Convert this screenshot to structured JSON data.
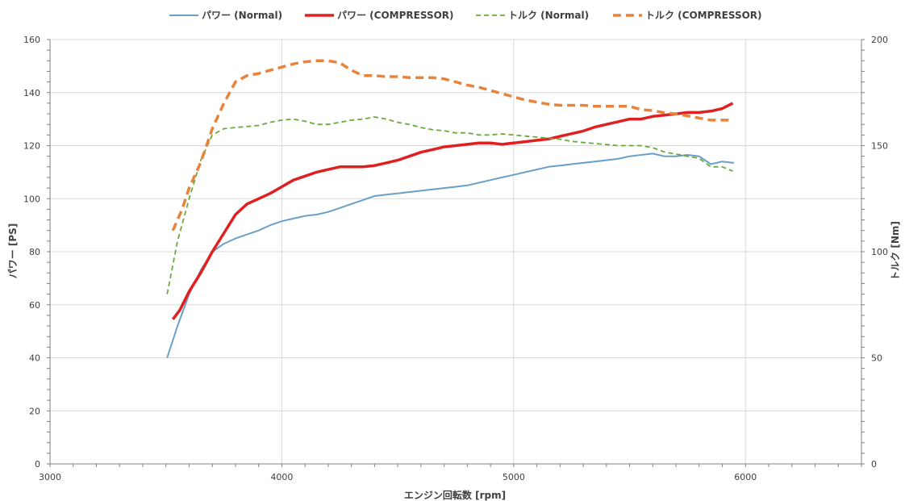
{
  "chart_data": {
    "type": "line",
    "xlabel": "エンジン回転数 [rpm]",
    "ylabel_left": "パワー [PS]",
    "ylabel_right": "トルク [Nm]",
    "xlim": [
      3000,
      6500
    ],
    "ylim_left": [
      0,
      160
    ],
    "ylim_right": [
      0,
      200
    ],
    "x_ticks": [
      3000,
      4000,
      5000,
      6000
    ],
    "y_ticks_left": [
      0,
      20,
      40,
      60,
      80,
      100,
      120,
      140,
      160
    ],
    "y_ticks_right": [
      0,
      50,
      100,
      150,
      200
    ],
    "grid": true,
    "legend_position": "top",
    "series": [
      {
        "name": "パワー (Normal)",
        "axis": "left",
        "color": "#6a9fc8",
        "style": "solid",
        "x": [
          3505,
          3550,
          3600,
          3650,
          3700,
          3750,
          3800,
          3850,
          3900,
          3950,
          4000,
          4050,
          4100,
          4150,
          4200,
          4250,
          4300,
          4350,
          4400,
          4450,
          4500,
          4550,
          4600,
          4650,
          4700,
          4750,
          4800,
          4850,
          4900,
          4950,
          5000,
          5050,
          5100,
          5150,
          5200,
          5250,
          5300,
          5350,
          5400,
          5450,
          5500,
          5550,
          5600,
          5650,
          5700,
          5750,
          5800,
          5850,
          5900,
          5950
        ],
        "y": [
          40,
          52,
          64,
          73,
          80,
          83,
          85,
          86.5,
          88,
          90,
          91.5,
          92.5,
          93.5,
          94,
          95,
          96.5,
          98,
          99.5,
          101,
          101.5,
          102,
          102.5,
          103,
          103.5,
          104,
          104.5,
          105,
          106,
          107,
          108,
          109,
          110,
          111,
          112,
          112.5,
          113,
          113.5,
          114,
          114.5,
          115,
          116,
          116.5,
          117,
          116,
          116,
          116.5,
          116,
          113,
          114,
          113.5
        ]
      },
      {
        "name": "パワー (COMPRESSOR)",
        "axis": "left",
        "color": "#e02020",
        "style": "solid-thick",
        "x": [
          3530,
          3560,
          3600,
          3650,
          3700,
          3750,
          3800,
          3850,
          3900,
          3950,
          4000,
          4050,
          4100,
          4150,
          4200,
          4250,
          4300,
          4350,
          4400,
          4450,
          4500,
          4550,
          4600,
          4650,
          4700,
          4750,
          4800,
          4850,
          4900,
          4950,
          5000,
          5050,
          5100,
          5150,
          5200,
          5250,
          5300,
          5350,
          5400,
          5450,
          5500,
          5550,
          5600,
          5650,
          5700,
          5750,
          5800,
          5850,
          5900,
          5945
        ],
        "y": [
          54.5,
          58,
          65,
          72,
          80,
          87,
          94,
          98,
          100,
          102,
          104.5,
          107,
          108.5,
          110,
          111,
          112,
          112,
          112,
          112.5,
          113.5,
          114.5,
          116,
          117.5,
          118.5,
          119.5,
          120,
          120.5,
          121,
          121,
          120.5,
          121,
          121.5,
          122,
          122.5,
          123.5,
          124.5,
          125.5,
          127,
          128,
          129,
          130,
          130,
          131,
          131.5,
          132,
          132.5,
          132.5,
          133,
          134,
          136
        ]
      },
      {
        "name": "トルク (Normal)",
        "axis": "right",
        "color": "#6aaa3c",
        "style": "dashed",
        "x": [
          3505,
          3550,
          3600,
          3650,
          3700,
          3750,
          3800,
          3850,
          3900,
          3950,
          4000,
          4050,
          4100,
          4150,
          4200,
          4250,
          4300,
          4350,
          4400,
          4450,
          4500,
          4550,
          4600,
          4650,
          4700,
          4750,
          4800,
          4850,
          4900,
          4950,
          5000,
          5050,
          5100,
          5150,
          5200,
          5250,
          5300,
          5350,
          5400,
          5450,
          5500,
          5550,
          5600,
          5650,
          5700,
          5750,
          5800,
          5850,
          5900,
          5945
        ],
        "y": [
          80,
          105,
          125,
          143,
          155,
          158,
          158.5,
          159,
          159.5,
          161,
          162,
          162.5,
          161.5,
          160,
          160,
          161,
          162,
          162.5,
          163.5,
          162.5,
          161,
          160,
          158.5,
          157.5,
          157,
          156,
          156,
          155,
          155,
          155.5,
          155,
          154.5,
          154,
          153.5,
          153,
          152,
          151.5,
          151,
          150.5,
          150,
          150,
          150,
          149,
          147,
          146,
          145,
          144,
          140,
          140,
          138
        ]
      },
      {
        "name": "トルク (COMPRESSOR)",
        "axis": "right",
        "color": "#e8833a",
        "style": "dashed-thick",
        "x": [
          3530,
          3570,
          3600,
          3650,
          3700,
          3750,
          3800,
          3850,
          3900,
          3950,
          4000,
          4050,
          4100,
          4150,
          4200,
          4250,
          4300,
          4350,
          4400,
          4450,
          4500,
          4550,
          4600,
          4650,
          4700,
          4750,
          4800,
          4850,
          4900,
          4950,
          5000,
          5050,
          5100,
          5150,
          5200,
          5250,
          5300,
          5350,
          5400,
          5450,
          5500,
          5550,
          5600,
          5650,
          5700,
          5750,
          5800,
          5850,
          5900,
          5930
        ],
        "y": [
          110,
          120,
          130,
          142,
          158,
          170,
          180,
          183,
          184,
          185.5,
          187,
          188.5,
          189.5,
          190,
          190,
          189,
          185.5,
          183,
          183,
          182.5,
          182.5,
          182,
          182,
          182,
          181.5,
          180,
          178.5,
          177.5,
          176,
          174.5,
          173,
          171.5,
          170.5,
          169.5,
          169,
          169,
          169,
          168.5,
          168.5,
          168.5,
          168.5,
          167,
          166.5,
          165.5,
          165,
          164,
          163,
          162,
          162,
          162
        ]
      }
    ]
  }
}
